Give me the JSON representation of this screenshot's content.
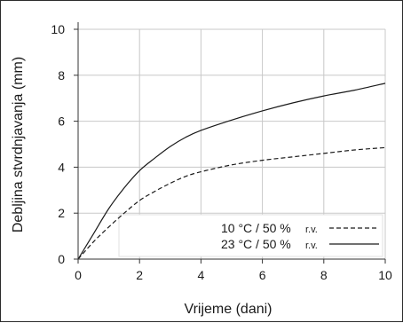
{
  "chart_data": {
    "type": "line",
    "xlabel": "Vrijeme (dani)",
    "ylabel": "Debljina stvrdnjavanja (mm)",
    "xlim": [
      0,
      10
    ],
    "ylim": [
      0,
      10
    ],
    "x_ticks": [
      "0",
      "2",
      "4",
      "6",
      "8",
      "10"
    ],
    "y_ticks": [
      "0",
      "2",
      "4",
      "6",
      "8",
      "10"
    ],
    "grid": true,
    "legend_position": "bottom-right",
    "series": [
      {
        "name": "10 °C / 50 %",
        "unit_suffix": "r.v.",
        "style": "dashed",
        "color": "#1a1a1a",
        "x": [
          0,
          0.5,
          1,
          1.5,
          2,
          2.5,
          3,
          3.5,
          4,
          5,
          6,
          7,
          8,
          9,
          10
        ],
        "y": [
          0,
          0.75,
          1.4,
          2.0,
          2.55,
          2.95,
          3.3,
          3.6,
          3.8,
          4.1,
          4.3,
          4.45,
          4.6,
          4.75,
          4.85
        ]
      },
      {
        "name": "23 °C / 50 %",
        "unit_suffix": "r.v.",
        "style": "solid",
        "color": "#1a1a1a",
        "x": [
          0,
          0.5,
          1,
          1.5,
          2,
          2.5,
          3,
          3.5,
          4,
          5,
          6,
          7,
          8,
          9,
          10
        ],
        "y": [
          0,
          1.1,
          2.2,
          3.1,
          3.85,
          4.4,
          4.9,
          5.3,
          5.6,
          6.05,
          6.45,
          6.8,
          7.1,
          7.35,
          7.65
        ]
      }
    ]
  }
}
